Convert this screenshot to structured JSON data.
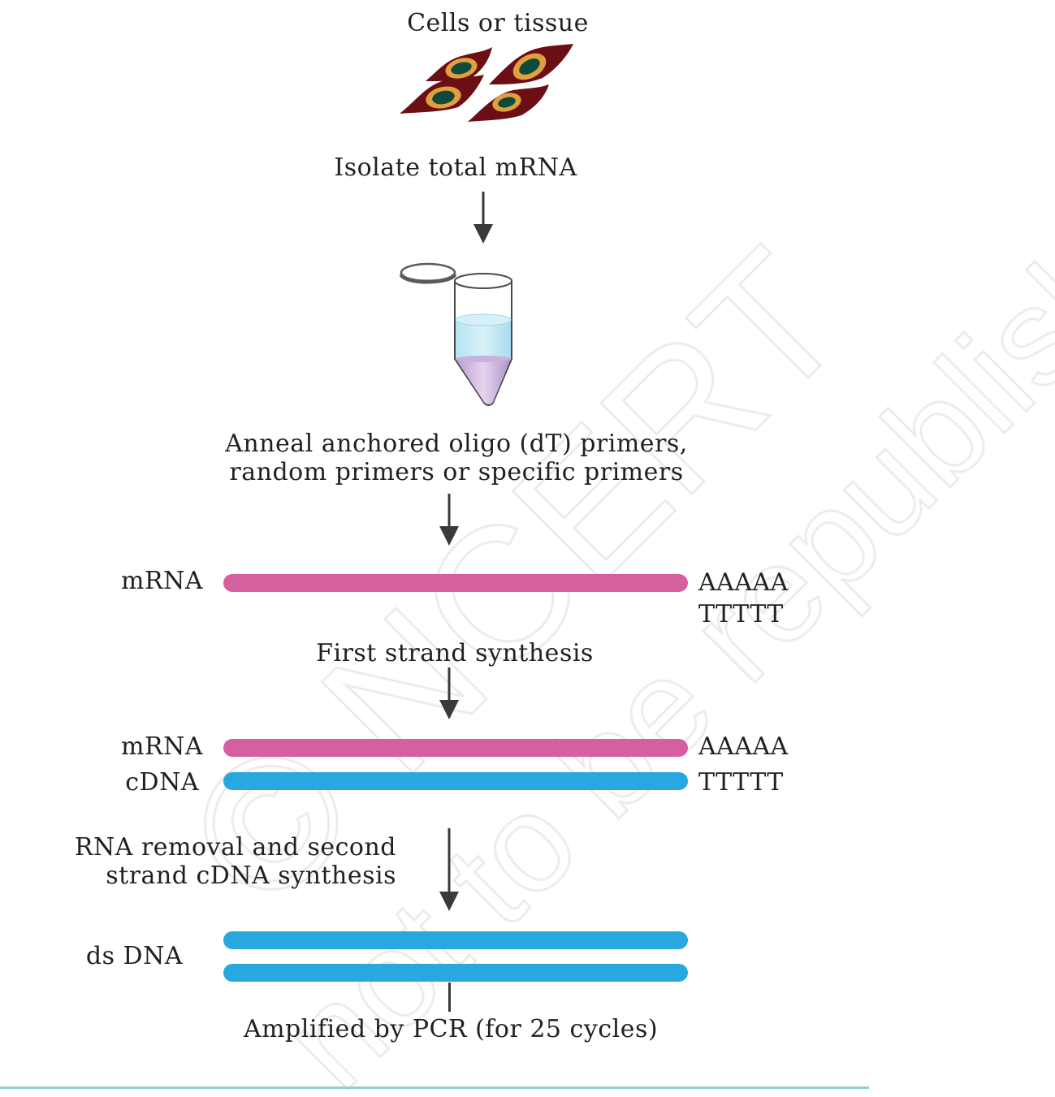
{
  "colors": {
    "mrna": "#d65fa0",
    "cdna": "#29a8e0",
    "arrow": "#3a3a3a",
    "bottom_rule": "#8fd1cf",
    "cell_body": "#6b0f14",
    "nucleus_ring": "#e0a040",
    "nucleus": "#0f4a3a"
  },
  "steps": {
    "cells": "Cells or tissue",
    "isolate": "Isolate total mRNA",
    "anneal_line1": "Anneal anchored oligo (dT) primers,",
    "anneal_line2": "random primers or specific primers",
    "first_strand": "First strand synthesis",
    "rna_removal_line1": "RNA removal and second",
    "rna_removal_line2": "strand cDNA synthesis",
    "amplified": "Amplified by PCR (for 25 cycles)"
  },
  "strands": {
    "mrna_label": "mRNA",
    "cdna_label": "cDNA",
    "dsdna_label": "ds DNA",
    "poly_a": "AAAAA",
    "poly_t": "TTTTT"
  },
  "watermark": {
    "line1": "© NCERT",
    "line2": "not to be republished"
  }
}
